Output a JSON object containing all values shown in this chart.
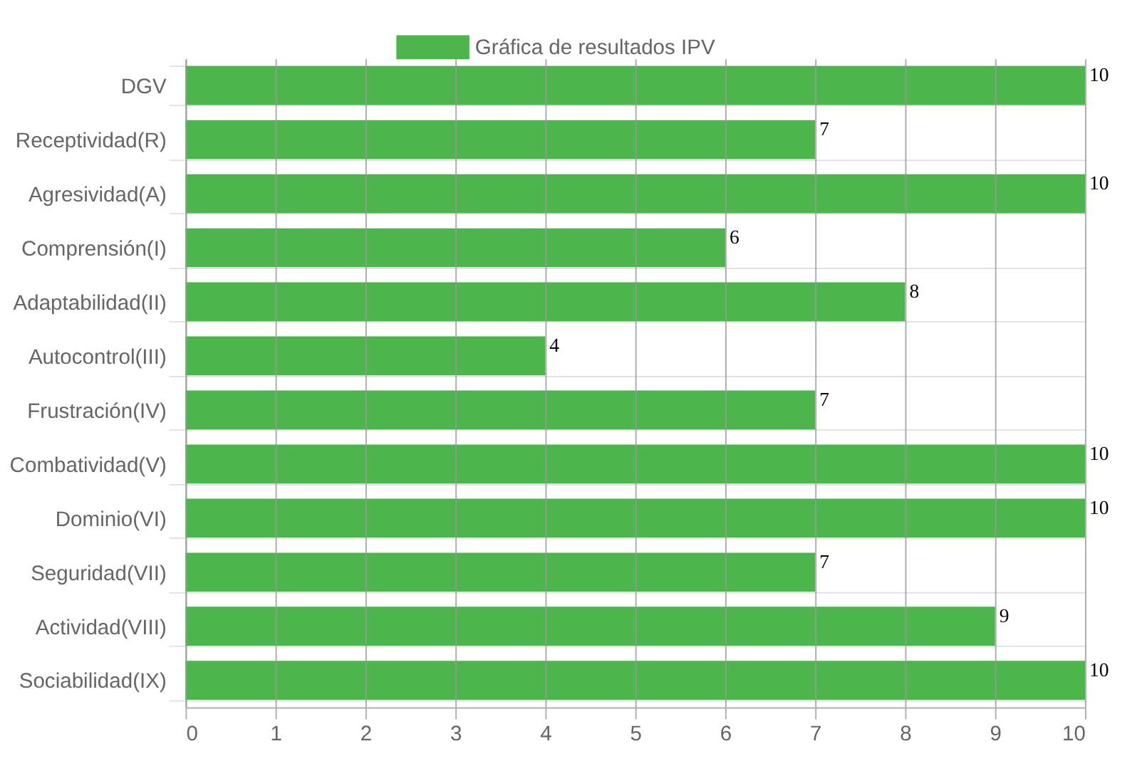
{
  "chart_data": {
    "type": "bar",
    "orientation": "horizontal",
    "categories": [
      "DGV",
      "Receptividad(R)",
      "Agresividad(A)",
      "Comprensión(I)",
      "Adaptabilidad(II)",
      "Autocontrol(III)",
      "Frustración(IV)",
      "Combatividad(V)",
      "Dominio(VI)",
      "Seguridad(VII)",
      "Actividad(VIII)",
      "Sociabilidad(IX)"
    ],
    "series": [
      {
        "name": "Gráfica de resultados IPV",
        "color": "#4cb54c",
        "values": [
          10,
          7,
          10,
          6,
          8,
          4,
          7,
          10,
          10,
          7,
          9,
          10
        ]
      }
    ],
    "xlim": [
      0,
      10
    ],
    "xticks": [
      0,
      1,
      2,
      3,
      4,
      5,
      6,
      7,
      8,
      9,
      10
    ],
    "grid": true,
    "legend": "top",
    "data_labels": true
  }
}
